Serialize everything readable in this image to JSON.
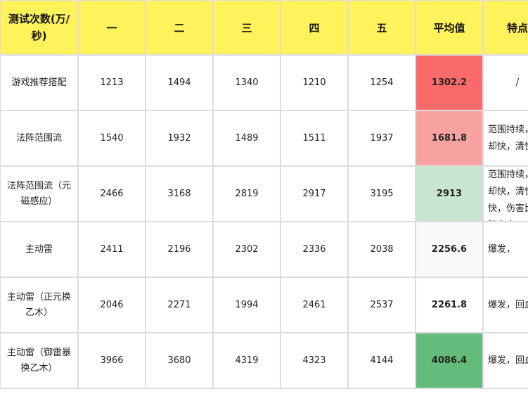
{
  "headers": [
    "测试次数(万/秒)",
    "一",
    "二",
    "三",
    "四",
    "五",
    "平均值",
    "特点"
  ],
  "rows": [
    {
      "name": "游戏推荐搭配",
      "values": [
        "1213",
        "1494",
        "1340",
        "1210",
        "1254"
      ],
      "avg": "1302.2",
      "avg_color": "#f96b6b",
      "feature": "/"
    },
    {
      "name": "法阵范围流",
      "values": [
        "1540",
        "1932",
        "1489",
        "1511",
        "1937"
      ],
      "avg": "1681.8",
      "avg_color": "#f9a2a2",
      "feature": "范围持续，冷却快，清怪快"
    },
    {
      "name": "法阵范围流（元磁感应）",
      "values": [
        "2466",
        "3168",
        "2819",
        "2917",
        "3195"
      ],
      "avg": "2913",
      "avg_color": "#c8e6d0",
      "feature": "范围持续，冷却快，清怪快，伤害比基础套高"
    },
    {
      "name": "主动雷",
      "values": [
        "2411",
        "2196",
        "2302",
        "2336",
        "2038"
      ],
      "avg": "2256.6",
      "avg_color": "#f9f9fc",
      "feature": "爆发，"
    },
    {
      "name": "主动雷（正元换乙木）",
      "values": [
        "2046",
        "2271",
        "1994",
        "2461",
        "2537"
      ],
      "avg": "2261.8",
      "avg_color": "#ffffff",
      "feature": "爆发，回血"
    },
    {
      "name": "主动雷（御雷暴换乙木）",
      "values": [
        "3966",
        "3680",
        "4319",
        "4323",
        "4144"
      ],
      "avg": "4086.4",
      "avg_color": "#63bc7a",
      "feature": "爆发，回血"
    }
  ],
  "colors": {
    "header_bg": "#fff35c",
    "grid": "#dcdcdc"
  }
}
